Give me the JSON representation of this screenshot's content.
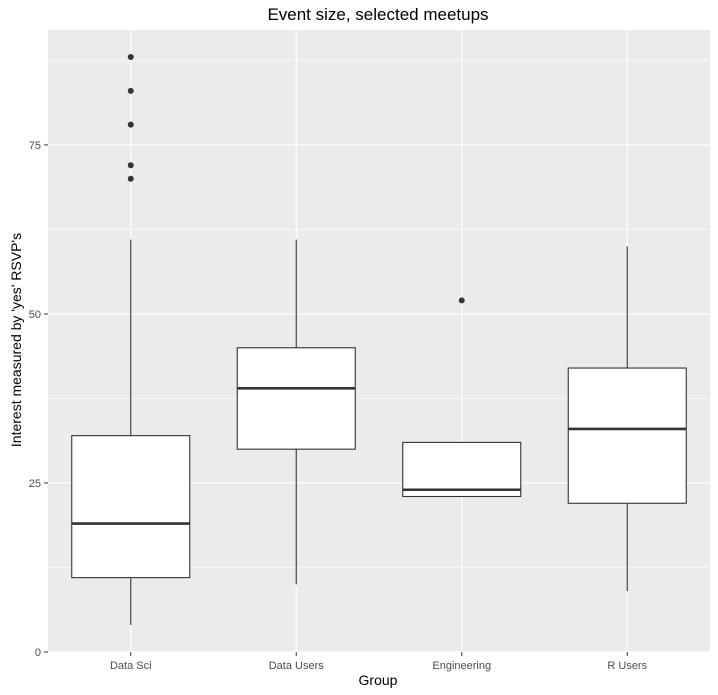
{
  "chart_data": {
    "type": "boxplot",
    "title": "Event size, selected meetups",
    "xlabel": "Group",
    "ylabel": "Interest measured by 'yes' RSVP's",
    "ylim": [
      0,
      92
    ],
    "y_ticks": [
      0,
      25,
      50,
      75
    ],
    "y_minor_ticks": [
      12.5,
      37.5,
      62.5,
      87.5
    ],
    "grid": true,
    "colors": {
      "panel": "#ebebeb",
      "grid": "#ffffff",
      "box_fill": "#ffffff",
      "box_stroke": "#333333",
      "outlier": "#333333"
    },
    "categories": [
      "Data Sci",
      "Data Users",
      "Engineering",
      "R Users"
    ],
    "boxes": [
      {
        "category": "Data Sci",
        "whisker_low": 4,
        "q1": 11,
        "median": 19,
        "q3": 32,
        "whisker_high": 61,
        "outliers": [
          70,
          72,
          78,
          83,
          88
        ]
      },
      {
        "category": "Data Users",
        "whisker_low": 10,
        "q1": 30,
        "median": 39,
        "q3": 45,
        "whisker_high": 61,
        "outliers": []
      },
      {
        "category": "Engineering",
        "whisker_low": 23,
        "q1": 23,
        "median": 24,
        "q3": 31,
        "whisker_high": 31,
        "outliers": [
          52
        ]
      },
      {
        "category": "R Users",
        "whisker_low": 9,
        "q1": 22,
        "median": 33,
        "q3": 42,
        "whisker_high": 60,
        "outliers": []
      }
    ]
  }
}
